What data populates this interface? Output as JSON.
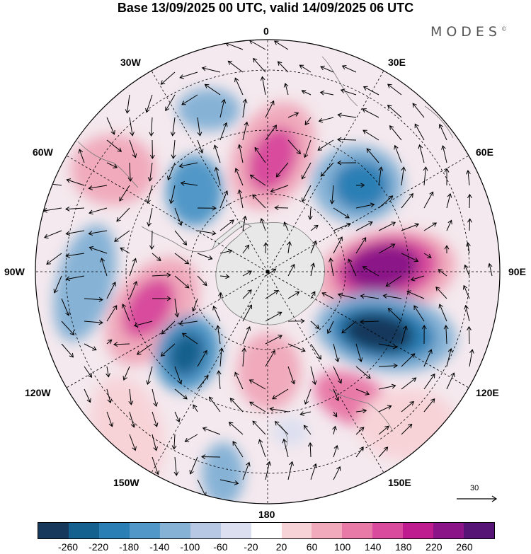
{
  "title": "Base 13/09/2025 00 UTC, valid 14/09/2025 06 UTC",
  "brand": "MODES",
  "brand_mark": "©",
  "longitude_labels": {
    "top": "0",
    "right": "90E",
    "bottom": "180",
    "left": "90W",
    "lon30e": "30E",
    "lon60e": "60E",
    "lon120e": "120E",
    "lon150e": "150E",
    "lon30w": "30W",
    "lon60w": "60W",
    "lon120w": "120W",
    "lon150w": "150W"
  },
  "reference_vector": {
    "value": "30"
  },
  "colorbar": {
    "ticks": [
      "-260",
      "-220",
      "-180",
      "-140",
      "-100",
      "-60",
      "-20",
      "20",
      "60",
      "100",
      "140",
      "180",
      "220",
      "260"
    ],
    "colors": [
      "#17395c",
      "#14608e",
      "#2a7fb5",
      "#5197c7",
      "#86b2d6",
      "#b6c8e4",
      "#dbdff0",
      "#ffffff",
      "#f7d3d8",
      "#f0aabc",
      "#e87aa8",
      "#d84b9d",
      "#bf1c8f",
      "#8a1488",
      "#561477"
    ]
  },
  "colors": {
    "land": "#e8e8e8",
    "coast": "#7a7a7a"
  }
}
